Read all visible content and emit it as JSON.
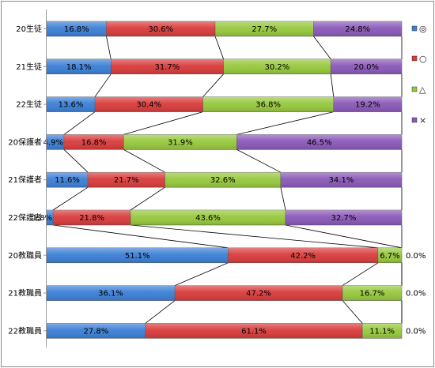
{
  "chart_data": {
    "type": "bar",
    "orientation": "horizontal",
    "stacked": "100%",
    "title": "",
    "xlabel": "",
    "ylabel": "",
    "categories": [
      "20生徒",
      "21生徒",
      "22生徒",
      "20保護者",
      "21保護者",
      "22保護者",
      "20教職員",
      "21教職員",
      "22教職員"
    ],
    "series": [
      {
        "name": "◎",
        "color": "#3b7fd6",
        "values": [
          16.8,
          18.1,
          13.6,
          4.9,
          11.6,
          1.8,
          51.1,
          36.1,
          27.8
        ],
        "labels": [
          "16.8%",
          "18.1%",
          "13.6%",
          "4.9%",
          "11.6%",
          "1.8%",
          "51.1%",
          "36.1%",
          "27.8%"
        ]
      },
      {
        "name": "○",
        "color": "#d93b3b",
        "values": [
          30.6,
          31.7,
          30.4,
          16.8,
          21.7,
          21.8,
          42.2,
          47.2,
          61.1
        ],
        "labels": [
          "30.6%",
          "31.7%",
          "30.4%",
          "16.8%",
          "21.7%",
          "21.8%",
          "42.2%",
          "47.2%",
          "61.1%"
        ]
      },
      {
        "name": "△",
        "color": "#96c83c",
        "values": [
          27.7,
          30.2,
          36.8,
          31.9,
          32.6,
          43.6,
          6.7,
          16.7,
          11.1
        ],
        "labels": [
          "27.7%",
          "30.2%",
          "36.8%",
          "31.9%",
          "32.6%",
          "43.6%",
          "6.7%",
          "16.7%",
          "11.1%"
        ]
      },
      {
        "name": "×",
        "color": "#8a58b8",
        "values": [
          24.8,
          20.0,
          19.2,
          46.5,
          34.1,
          32.7,
          0.0,
          0.0,
          0.0
        ],
        "labels": [
          "24.8%",
          "20.0%",
          "19.2%",
          "46.5%",
          "34.1%",
          "32.7%",
          "0.0%",
          "0.0%",
          "0.0%"
        ]
      }
    ],
    "series_lines": true,
    "xlim": [
      0,
      100
    ],
    "grid": false,
    "legend": "right"
  }
}
